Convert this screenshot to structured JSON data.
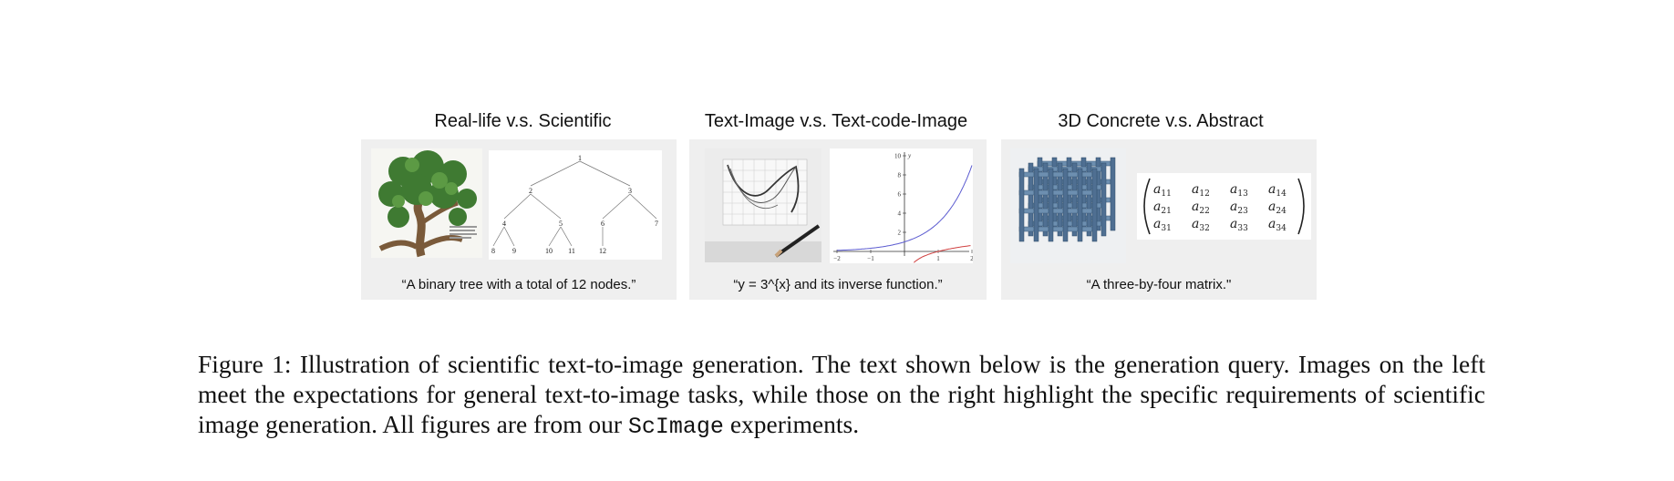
{
  "panels": [
    {
      "title": "Real-life v.s. Scientific",
      "query": "“A binary tree with a total of 12 nodes.”"
    },
    {
      "title": "Text-Image v.s. Text-code-Image",
      "query": "“y = 3^{x} and its inverse function.”"
    },
    {
      "title": "3D Concrete v.s. Abstract",
      "query": "“A three-by-four matrix.\""
    }
  ],
  "tree": {
    "nodes": [
      "1",
      "2",
      "3",
      "4",
      "5",
      "6",
      "7",
      "8",
      "9",
      "10",
      "11",
      "12"
    ]
  },
  "plot": {
    "x_ticks": [
      "−2",
      "−1",
      "1",
      "2"
    ],
    "y_ticks": [
      "10",
      "8",
      "6",
      "4",
      "2"
    ],
    "y_axis_label": "y",
    "colors": {
      "exp": "#5b5bd0",
      "log": "#d04040"
    }
  },
  "matrix": {
    "rows": [
      [
        "a11",
        "a12",
        "a13",
        "a14"
      ],
      [
        "a21",
        "a22",
        "a23",
        "a24"
      ],
      [
        "a31",
        "a32",
        "a33",
        "a34"
      ]
    ]
  },
  "caption": {
    "part1": "Figure 1: Illustration of scientific text-to-image generation. The text shown below is the generation query. Images on the left meet the expectations for general text-to-image tasks, while those on the right highlight the specific requirements of scientific image generation. All figures are from our ",
    "mono": "ScImage",
    "part2": " experiments."
  }
}
